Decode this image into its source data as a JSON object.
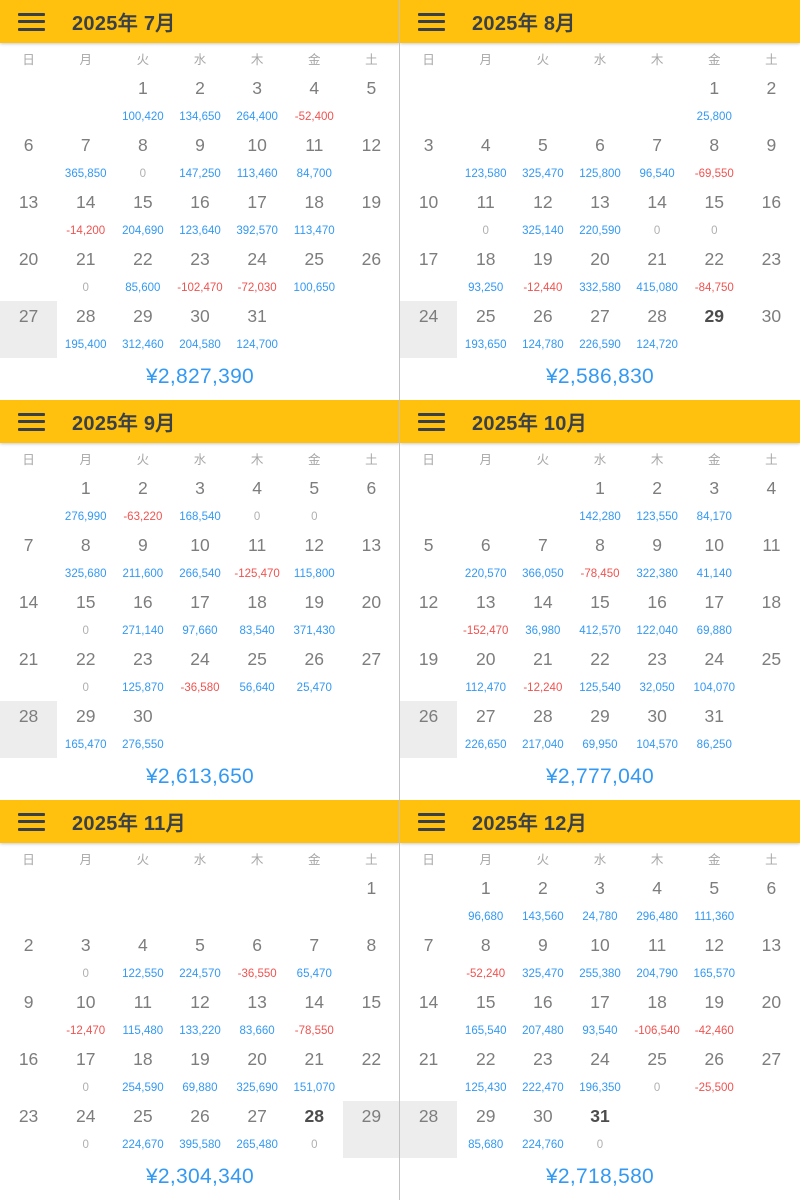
{
  "weekdays": [
    "日",
    "月",
    "火",
    "水",
    "木",
    "金",
    "土"
  ],
  "icons": {
    "menu": "hamburger-menu-icon"
  },
  "colors": {
    "header_bg": "#ffc10d",
    "header_text": "#3a4047",
    "positive": "#3399f3",
    "negative": "#ef5350",
    "zero": "#b0b0b0",
    "total": "#3399f3",
    "highlight_bg": "#ededed",
    "day_number": "#7d7d7d",
    "weekday_label": "#a7a7a7"
  },
  "months": [
    {
      "title": "2025年 7月",
      "first_dow": 2,
      "display_days": 31,
      "highlight_day": 27,
      "bold_days": [],
      "total": "¥2,827,390",
      "values": {
        "1": "100,420",
        "2": "134,650",
        "3": "264,400",
        "4": "-52,400",
        "7": "365,850",
        "8": "0",
        "9": "147,250",
        "10": "113,460",
        "11": "84,700",
        "14": "-14,200",
        "15": "204,690",
        "16": "123,640",
        "17": "392,570",
        "18": "113,470",
        "21": "0",
        "22": "85,600",
        "23": "-102,470",
        "24": "-72,030",
        "25": "100,650",
        "28": "195,400",
        "29": "312,460",
        "30": "204,580",
        "31": "124,700"
      }
    },
    {
      "title": "2025年 8月",
      "first_dow": 5,
      "display_days": 30,
      "highlight_day": 24,
      "bold_days": [
        29
      ],
      "total": "¥2,586,830",
      "values": {
        "1": "25,800",
        "4": "123,580",
        "5": "325,470",
        "6": "125,800",
        "7": "96,540",
        "8": "-69,550",
        "11": "0",
        "12": "325,140",
        "13": "220,590",
        "14": "0",
        "15": "0",
        "18": "93,250",
        "19": "-12,440",
        "20": "332,580",
        "21": "415,080",
        "22": "-84,750",
        "25": "193,650",
        "26": "124,780",
        "27": "226,590",
        "28": "124,720"
      }
    },
    {
      "title": "2025年 9月",
      "first_dow": 1,
      "display_days": 30,
      "highlight_day": 28,
      "bold_days": [],
      "total": "¥2,613,650",
      "values": {
        "1": "276,990",
        "2": "-63,220",
        "3": "168,540",
        "4": "0",
        "5": "0",
        "8": "325,680",
        "9": "211,600",
        "10": "266,540",
        "11": "-125,470",
        "12": "115,800",
        "15": "0",
        "16": "271,140",
        "17": "97,660",
        "18": "83,540",
        "19": "371,430",
        "22": "0",
        "23": "125,870",
        "24": "-36,580",
        "25": "56,640",
        "26": "25,470",
        "29": "165,470",
        "30": "276,550"
      }
    },
    {
      "title": "2025年 10月",
      "first_dow": 3,
      "display_days": 31,
      "highlight_day": 26,
      "bold_days": [],
      "total": "¥2,777,040",
      "values": {
        "1": "142,280",
        "2": "123,550",
        "3": "84,170",
        "6": "220,570",
        "7": "366,050",
        "8": "-78,450",
        "9": "322,380",
        "10": "41,140",
        "13": "-152,470",
        "14": "36,980",
        "15": "412,570",
        "16": "122,040",
        "17": "69,880",
        "20": "112,470",
        "21": "-12,240",
        "22": "125,540",
        "23": "32,050",
        "24": "104,070",
        "27": "226,650",
        "28": "217,040",
        "29": "69,950",
        "30": "104,570",
        "31": "86,250"
      }
    },
    {
      "title": "2025年 11月",
      "first_dow": 6,
      "display_days": 29,
      "highlight_day": 29,
      "bold_days": [
        28
      ],
      "total": "¥2,304,340",
      "values": {
        "3": "0",
        "4": "122,550",
        "5": "224,570",
        "6": "-36,550",
        "7": "65,470",
        "10": "-12,470",
        "11": "115,480",
        "12": "133,220",
        "13": "83,660",
        "14": "-78,550",
        "17": "0",
        "18": "254,590",
        "19": "69,880",
        "20": "325,690",
        "21": "151,070",
        "24": "0",
        "25": "224,670",
        "26": "395,580",
        "27": "265,480",
        "28": "0"
      }
    },
    {
      "title": "2025年 12月",
      "first_dow": 1,
      "display_days": 31,
      "highlight_day": 28,
      "bold_days": [
        31
      ],
      "total": "¥2,718,580",
      "values": {
        "1": "96,680",
        "2": "143,560",
        "3": "24,780",
        "4": "296,480",
        "5": "111,360",
        "8": "-52,240",
        "9": "325,470",
        "10": "255,380",
        "11": "204,790",
        "12": "165,570",
        "15": "165,540",
        "16": "207,480",
        "17": "93,540",
        "18": "-106,540",
        "19": "-42,460",
        "22": "125,430",
        "23": "222,470",
        "24": "196,350",
        "25": "0",
        "26": "-25,500",
        "29": "85,680",
        "30": "224,760",
        "31": "0"
      }
    }
  ]
}
